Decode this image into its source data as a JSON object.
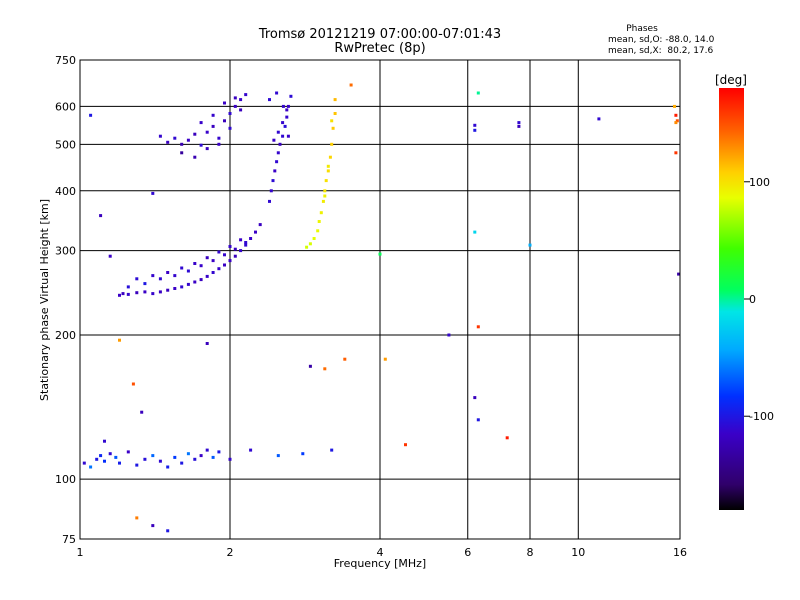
{
  "chart_data": {
    "type": "scatter",
    "title": "Tromsø 20121219 07:00:00-07:01:43",
    "subtitle": "RwPretec (8p)",
    "stats": {
      "heading": "Phases",
      "line_o": "mean, sd,O: -88.0, 14.0",
      "line_x": "mean, sd,X:  80.2, 17.6"
    },
    "xlabel": "Frequency [MHz]",
    "ylabel": "Stationary phase Virtual Height [km]",
    "x_scale": "log",
    "y_scale": "log",
    "xlim": [
      1,
      16
    ],
    "ylim": [
      75,
      750
    ],
    "x_ticks": [
      1,
      2,
      4,
      6,
      8,
      10,
      16
    ],
    "y_ticks": [
      75,
      100,
      200,
      300,
      400,
      500,
      600,
      750
    ],
    "colorbar": {
      "label": "[deg]",
      "range": [
        -180,
        180
      ],
      "ticks": [
        100,
        0,
        -100
      ]
    },
    "grid": true,
    "series": [
      {
        "trace": "O-mode lower F-layer trace",
        "x": [
          1.2,
          1.22,
          1.25,
          1.3,
          1.35,
          1.4,
          1.45,
          1.5,
          1.55,
          1.6,
          1.65,
          1.7,
          1.75,
          1.8,
          1.85,
          1.9,
          1.95,
          2.0,
          2.05,
          2.1,
          2.15,
          2.2,
          2.25,
          2.3,
          1.3,
          1.4,
          1.5,
          1.6,
          1.7,
          1.8,
          1.9,
          2.0,
          2.1,
          1.25,
          1.35,
          1.45,
          1.55,
          1.65,
          1.75,
          1.85,
          1.95,
          2.05,
          2.15
        ],
        "y": [
          242,
          244,
          243,
          245,
          246,
          244,
          246,
          248,
          250,
          252,
          255,
          258,
          261,
          265,
          270,
          275,
          280,
          286,
          292,
          300,
          308,
          318,
          328,
          340,
          262,
          266,
          270,
          276,
          282,
          290,
          298,
          306,
          316,
          252,
          256,
          262,
          266,
          272,
          279,
          286,
          294,
          302,
          312
        ],
        "phase": [
          -115,
          -118,
          -112,
          -120,
          -116,
          -113,
          -117,
          -119,
          -115,
          -110,
          -112,
          -116,
          -118,
          -114,
          -111,
          -113,
          -117,
          -115,
          -120,
          -112,
          -110,
          -114,
          -116,
          -118,
          -108,
          -112,
          -116,
          -110,
          -114,
          -118,
          -111,
          -113,
          -115,
          -105,
          -100,
          -110,
          -112,
          -108,
          -114,
          -116,
          -112,
          -118,
          -110
        ]
      },
      {
        "trace": "O-mode upper F-layer trace",
        "x": [
          1.45,
          1.5,
          1.55,
          1.6,
          1.65,
          1.7,
          1.75,
          1.8,
          1.85,
          1.9,
          1.95,
          2.0,
          2.05,
          2.1,
          2.15,
          1.6,
          1.7,
          1.8,
          1.9,
          2.0,
          2.1,
          1.75,
          1.85,
          1.95,
          2.05
        ],
        "y": [
          520,
          505,
          515,
          500,
          510,
          525,
          498,
          530,
          545,
          515,
          560,
          580,
          600,
          620,
          635,
          480,
          470,
          490,
          500,
          540,
          590,
          555,
          575,
          610,
          625
        ],
        "phase": [
          -112,
          -118,
          -110,
          -125,
          -115,
          -120,
          -108,
          -114,
          -118,
          -112,
          -120,
          -110,
          -116,
          -114,
          -112,
          -135,
          -125,
          -118,
          -115,
          -110,
          -120,
          -114,
          -112,
          -116,
          -118
        ]
      },
      {
        "trace": "O-mode vertical trace near 2.4 MHz",
        "x": [
          2.4,
          2.42,
          2.44,
          2.46,
          2.48,
          2.5,
          2.52,
          2.55,
          2.58,
          2.6,
          2.62,
          2.65,
          2.45,
          2.5,
          2.55,
          2.6,
          2.4,
          2.48,
          2.56,
          2.62
        ],
        "y": [
          380,
          400,
          420,
          440,
          460,
          480,
          500,
          520,
          545,
          570,
          600,
          630,
          510,
          530,
          555,
          590,
          620,
          640,
          600,
          520
        ],
        "phase": [
          -110,
          -112,
          -108,
          -115,
          -110,
          -112,
          -118,
          -110,
          -106,
          -112,
          -114,
          -108,
          -115,
          -110,
          -112,
          -116,
          -108,
          -110,
          -112,
          -114
        ]
      },
      {
        "trace": "X-mode trace near 3.1 MHz",
        "x": [
          2.85,
          2.9,
          2.95,
          3.0,
          3.02,
          3.05,
          3.08,
          3.1,
          3.12,
          3.15,
          3.18,
          3.2,
          3.22,
          3.25,
          3.25,
          3.2,
          3.15,
          3.1
        ],
        "y": [
          305,
          310,
          318,
          330,
          345,
          360,
          380,
          400,
          420,
          440,
          470,
          500,
          540,
          580,
          620,
          560,
          450,
          390
        ],
        "phase": [
          80,
          82,
          85,
          88,
          90,
          92,
          95,
          98,
          100,
          102,
          105,
          108,
          110,
          112,
          115,
          100,
          96,
          92
        ]
      },
      {
        "trace": "E-layer near 110 km",
        "x": [
          1.02,
          1.05,
          1.08,
          1.1,
          1.12,
          1.15,
          1.18,
          1.2,
          1.25,
          1.3,
          1.35,
          1.4,
          1.45,
          1.5,
          1.55,
          1.6,
          1.65,
          1.7,
          1.75,
          1.8,
          1.85,
          1.9,
          2.0,
          2.2,
          2.5,
          2.8,
          3.2
        ],
        "y": [
          108,
          106,
          110,
          112,
          109,
          113,
          111,
          108,
          114,
          107,
          110,
          112,
          109,
          106,
          111,
          108,
          113,
          110,
          112,
          115,
          111,
          114,
          110,
          115,
          112,
          113,
          115
        ],
        "phase": [
          -110,
          -60,
          -100,
          -90,
          -85,
          -110,
          -70,
          -95,
          -115,
          -100,
          -105,
          -65,
          -110,
          -95,
          -80,
          -100,
          -60,
          -105,
          -115,
          -110,
          -70,
          -100,
          -112,
          -110,
          -70,
          -80,
          -100
        ]
      },
      {
        "trace": "Scattered points",
        "x": [
          1.12,
          1.05,
          1.1,
          1.15,
          1.2,
          1.28,
          1.33,
          1.4,
          1.8,
          2.9,
          3.1,
          3.4,
          3.5,
          4.0,
          4.1,
          4.5,
          5.5,
          6.2,
          6.2,
          6.3,
          6.2,
          6.3,
          6.2,
          6.3,
          7.2,
          7.6,
          7.6,
          8.0,
          11.0,
          15.7,
          15.8,
          15.7,
          15.9,
          15.6,
          15.7,
          1.3,
          1.4,
          1.5
        ],
        "y": [
          120,
          575,
          355,
          292,
          195,
          158,
          138,
          395,
          192,
          172,
          170,
          178,
          665,
          295,
          178,
          118,
          200,
          548,
          535,
          640,
          328,
          208,
          148,
          133,
          122,
          545,
          555,
          308,
          565,
          575,
          560,
          480,
          268,
          600,
          555,
          83,
          80,
          78
        ],
        "phase": [
          -110,
          -100,
          -120,
          -115,
          125,
          150,
          -120,
          -110,
          -120,
          -130,
          140,
          145,
          140,
          10,
          125,
          160,
          -112,
          -110,
          -100,
          0,
          -20,
          160,
          -120,
          -100,
          170,
          -120,
          -110,
          -40,
          -110,
          170,
          150,
          160,
          -130,
          120,
          130,
          135,
          -120,
          -100
        ]
      }
    ]
  }
}
